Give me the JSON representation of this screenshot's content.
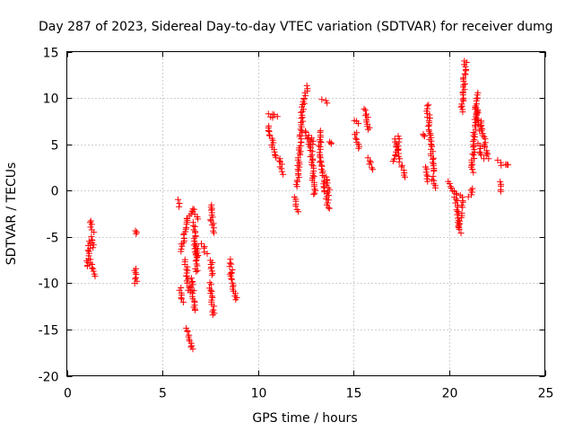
{
  "chart_data": {
    "type": "scatter",
    "title": "Day 287 of 2023, Sidereal Day-to-day VTEC variation (SDTVAR) for receiver dumg",
    "xlabel": "GPS time / hours",
    "ylabel": "SDTVAR / TECUs",
    "xlim": [
      0,
      25
    ],
    "ylim": [
      -20,
      15
    ],
    "xticks": [
      0,
      5,
      10,
      15,
      20,
      25
    ],
    "yticks": [
      -20,
      -15,
      -10,
      -5,
      0,
      5,
      10,
      15
    ],
    "xtick_labels": [
      "0",
      "5",
      "10",
      "15",
      "20",
      "25"
    ],
    "ytick_labels": [
      "-20",
      "-15",
      "-10",
      "-5",
      "0",
      "5",
      "10",
      "15"
    ],
    "grid": true,
    "marker": "+",
    "color": "#ff0000",
    "segments": [
      {
        "x0": 1.05,
        "x1": 1.2,
        "y0": -8.2,
        "y1": -5.5
      },
      {
        "x0": 1.2,
        "x1": 1.35,
        "y0": -3.2,
        "y1": -4.5
      },
      {
        "x0": 1.2,
        "x1": 1.45,
        "y0": -7.5,
        "y1": -9.3
      },
      {
        "x0": 1.3,
        "x1": 1.4,
        "y0": -5.0,
        "y1": -6.2
      },
      {
        "x0": 3.6,
        "x1": 3.62,
        "y0": -4.4,
        "y1": -4.6
      },
      {
        "x0": 3.6,
        "x1": 3.62,
        "y0": -8.4,
        "y1": -10.0
      },
      {
        "x0": 5.8,
        "x1": 5.9,
        "y0": -1.0,
        "y1": -1.7
      },
      {
        "x0": 5.9,
        "x1": 6.1,
        "y0": -10.5,
        "y1": -12.0
      },
      {
        "x0": 6.0,
        "x1": 6.3,
        "y0": -6.5,
        "y1": -3.0
      },
      {
        "x0": 6.2,
        "x1": 6.4,
        "y0": -7.5,
        "y1": -11.0
      },
      {
        "x0": 6.3,
        "x1": 6.55,
        "y0": -14.8,
        "y1": -17.2
      },
      {
        "x0": 6.35,
        "x1": 6.6,
        "y0": -3.0,
        "y1": -2.0
      },
      {
        "x0": 6.5,
        "x1": 6.7,
        "y0": -9.5,
        "y1": -13.0
      },
      {
        "x0": 6.6,
        "x1": 6.85,
        "y0": -2.0,
        "y1": -3.0
      },
      {
        "x0": 6.65,
        "x1": 6.8,
        "y0": -3.5,
        "y1": -8.8
      },
      {
        "x0": 6.75,
        "x1": 6.85,
        "y0": -5.8,
        "y1": -7.2
      },
      {
        "x0": 7.1,
        "x1": 7.3,
        "y0": -5.8,
        "y1": -6.8
      },
      {
        "x0": 7.5,
        "x1": 7.65,
        "y0": -1.5,
        "y1": -4.5
      },
      {
        "x0": 7.5,
        "x1": 7.7,
        "y0": -10.0,
        "y1": -13.5
      },
      {
        "x0": 7.55,
        "x1": 7.65,
        "y0": -7.5,
        "y1": -9.2
      },
      {
        "x0": 8.5,
        "x1": 8.65,
        "y0": -7.5,
        "y1": -9.0
      },
      {
        "x0": 8.55,
        "x1": 8.85,
        "y0": -9.0,
        "y1": -11.8
      },
      {
        "x0": 10.5,
        "x1": 10.7,
        "y0": 8.3,
        "y1": 7.8
      },
      {
        "x0": 10.55,
        "x1": 10.9,
        "y0": 7.0,
        "y1": 3.5
      },
      {
        "x0": 10.75,
        "x1": 10.95,
        "y0": 8.2,
        "y1": 8.0
      },
      {
        "x0": 11.1,
        "x1": 11.3,
        "y0": 3.5,
        "y1": 1.8
      },
      {
        "x0": 11.9,
        "x1": 12.1,
        "y0": -0.8,
        "y1": -2.2
      },
      {
        "x0": 12.05,
        "x1": 12.35,
        "y0": 0.5,
        "y1": 9.5
      },
      {
        "x0": 12.3,
        "x1": 12.6,
        "y0": 9.5,
        "y1": 11.3
      },
      {
        "x0": 12.45,
        "x1": 12.65,
        "y0": 6.5,
        "y1": 5.0
      },
      {
        "x0": 12.7,
        "x1": 12.9,
        "y0": 6.0,
        "y1": 5.0
      },
      {
        "x0": 12.75,
        "x1": 12.95,
        "y0": 5.0,
        "y1": -0.5
      },
      {
        "x0": 13.2,
        "x1": 13.3,
        "y0": 6.5,
        "y1": 3.0
      },
      {
        "x0": 13.3,
        "x1": 13.7,
        "y0": 3.0,
        "y1": -2.0
      },
      {
        "x0": 13.4,
        "x1": 13.6,
        "y0": 9.8,
        "y1": 9.5
      },
      {
        "x0": 13.55,
        "x1": 13.75,
        "y0": 1.5,
        "y1": -0.5
      },
      {
        "x0": 13.75,
        "x1": 13.8,
        "y0": 5.3,
        "y1": 5.0
      },
      {
        "x0": 15.1,
        "x1": 15.3,
        "y0": 7.6,
        "y1": 7.3
      },
      {
        "x0": 15.1,
        "x1": 15.25,
        "y0": 6.2,
        "y1": 4.5
      },
      {
        "x0": 15.6,
        "x1": 15.8,
        "y0": 8.8,
        "y1": 6.5
      },
      {
        "x0": 15.75,
        "x1": 15.95,
        "y0": 3.5,
        "y1": 2.3
      },
      {
        "x0": 17.1,
        "x1": 17.4,
        "y0": 3.2,
        "y1": 5.8
      },
      {
        "x0": 17.2,
        "x1": 17.45,
        "y0": 5.5,
        "y1": 3.5
      },
      {
        "x0": 17.45,
        "x1": 17.65,
        "y0": 3.0,
        "y1": 1.5
      },
      {
        "x0": 18.6,
        "x1": 18.7,
        "y0": 6.0,
        "y1": 5.8
      },
      {
        "x0": 18.75,
        "x1": 18.85,
        "y0": 2.5,
        "y1": 1.0
      },
      {
        "x0": 18.85,
        "x1": 19.2,
        "y0": 9.3,
        "y1": 2.0
      },
      {
        "x0": 19.1,
        "x1": 19.3,
        "y0": 1.5,
        "y1": 0.3
      },
      {
        "x0": 19.9,
        "x1": 20.3,
        "y0": 1.0,
        "y1": -0.3
      },
      {
        "x0": 20.3,
        "x1": 20.6,
        "y0": -0.2,
        "y1": -4.5
      },
      {
        "x0": 20.45,
        "x1": 20.7,
        "y0": -4.0,
        "y1": -2.5
      },
      {
        "x0": 20.6,
        "x1": 20.7,
        "y0": -0.5,
        "y1": -1.8
      },
      {
        "x0": 20.65,
        "x1": 20.85,
        "y0": 8.5,
        "y1": 14.0
      },
      {
        "x0": 21.05,
        "x1": 21.25,
        "y0": -0.7,
        "y1": 0.3
      },
      {
        "x0": 21.2,
        "x1": 21.45,
        "y0": 2.0,
        "y1": 10.5
      },
      {
        "x0": 21.4,
        "x1": 21.65,
        "y0": 9.0,
        "y1": 6.5
      },
      {
        "x0": 21.55,
        "x1": 21.75,
        "y0": 5.0,
        "y1": 3.5
      },
      {
        "x0": 21.65,
        "x1": 22.0,
        "y0": 7.5,
        "y1": 3.5
      },
      {
        "x0": 22.5,
        "x1": 22.75,
        "y0": 3.2,
        "y1": 2.8
      },
      {
        "x0": 22.6,
        "x1": 22.75,
        "y0": 1.0,
        "y1": -0.1
      },
      {
        "x0": 23.0,
        "x1": 23.05,
        "y0": 2.8,
        "y1": 2.7
      }
    ]
  }
}
